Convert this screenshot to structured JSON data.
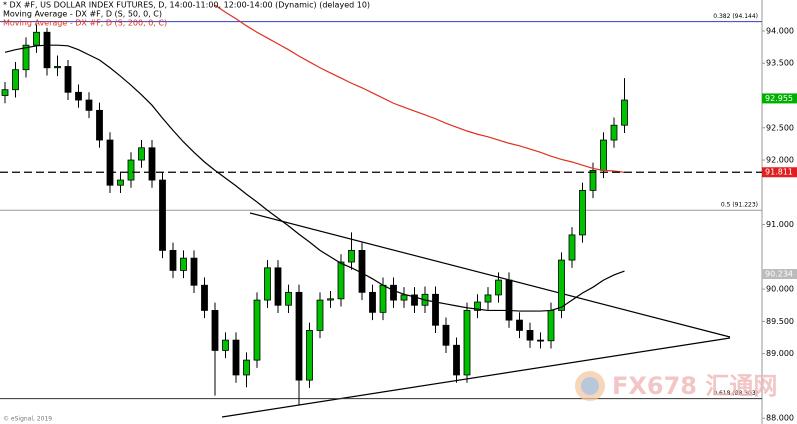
{
  "chart_data": {
    "type": "candlestick",
    "title": "* DX #F, US DOLLAR INDEX FUTURES, D, 14:00-11:00, 12:00-14:00 (Dynamic) (delayed 10)",
    "credit": "© eSignal, 2019",
    "watermark": "FX678 汇通网",
    "ylim": [
      87.91,
      94.48
    ],
    "yticks": [
      {
        "value": 94,
        "label": "94.000"
      },
      {
        "value": 93.5,
        "label": "93.500"
      },
      {
        "value": 92.5,
        "label": "92.500"
      },
      {
        "value": 92,
        "label": "92.000"
      },
      {
        "value": 91,
        "label": "91.000"
      },
      {
        "value": 90,
        "label": "90.000"
      },
      {
        "value": 89.5,
        "label": "89.500"
      },
      {
        "value": 89,
        "label": "89.000"
      },
      {
        "value": 88,
        "label": "88.000"
      }
    ],
    "up_color": "#00c000",
    "down_color": "#000000",
    "open": [
      93.0,
      93.09,
      93.4,
      93.78,
      93.98,
      93.43,
      93.45,
      93.05,
      92.93,
      92.77,
      92.31,
      91.61,
      91.69,
      92.0,
      92.19,
      91.69,
      90.6,
      90.29,
      90.48,
      90.06,
      89.67,
      89.05,
      89.21,
      88.67,
      88.9,
      89.83,
      90.33,
      89.75,
      89.95,
      88.59,
      89.36,
      89.83,
      89.85,
      90.42,
      90.6,
      89.95,
      89.64,
      90.06,
      89.83,
      89.91,
      89.75,
      89.92,
      89.44,
      89.13,
      88.67,
      89.67,
      89.8,
      89.91,
      90.14,
      89.52,
      89.36,
      89.21,
      89.2,
      89.67,
      90.45,
      90.84,
      91.53,
      91.84,
      92.31,
      92.54
    ],
    "high": [
      93.21,
      93.52,
      93.9,
      94.1,
      94.05,
      93.62,
      93.55,
      93.17,
      93.05,
      92.89,
      92.43,
      91.81,
      92.12,
      92.31,
      92.31,
      91.81,
      90.72,
      90.6,
      90.6,
      90.18,
      89.79,
      89.33,
      89.33,
      89.02,
      89.95,
      90.45,
      90.45,
      90.07,
      90.07,
      89.48,
      89.95,
      89.97,
      90.54,
      90.88,
      90.72,
      90.07,
      90.18,
      90.18,
      90.03,
      90.03,
      90.04,
      90.04,
      89.56,
      89.25,
      89.79,
      89.92,
      90.03,
      90.26,
      90.26,
      89.64,
      89.48,
      89.33,
      89.79,
      90.57,
      90.96,
      91.65,
      91.96,
      92.43,
      92.66,
      93.27
    ],
    "low": [
      92.88,
      92.97,
      93.28,
      93.66,
      93.31,
      93.3,
      92.93,
      92.81,
      92.65,
      92.19,
      91.49,
      91.49,
      91.57,
      91.88,
      91.57,
      90.48,
      90.17,
      90.17,
      89.94,
      89.55,
      88.35,
      88.93,
      88.55,
      88.48,
      88.78,
      89.71,
      89.63,
      89.63,
      88.2,
      88.47,
      89.24,
      89.71,
      89.73,
      90.3,
      89.83,
      89.52,
      89.52,
      89.71,
      89.71,
      89.63,
      89.63,
      89.32,
      89.01,
      88.55,
      88.55,
      89.55,
      89.68,
      89.79,
      89.4,
      89.24,
      89.09,
      89.08,
      89.08,
      89.55,
      90.33,
      90.72,
      91.41,
      91.72,
      92.19,
      92.42
    ],
    "close": [
      93.09,
      93.4,
      93.78,
      93.98,
      93.43,
      93.45,
      93.05,
      92.93,
      92.77,
      92.31,
      91.61,
      91.69,
      92.0,
      92.19,
      91.69,
      90.6,
      90.29,
      90.48,
      90.06,
      89.67,
      89.05,
      89.21,
      88.67,
      88.9,
      89.83,
      90.33,
      89.75,
      89.95,
      88.59,
      89.36,
      89.83,
      89.85,
      90.42,
      90.6,
      89.95,
      89.64,
      90.06,
      89.83,
      89.91,
      89.75,
      89.92,
      89.44,
      89.13,
      88.67,
      89.67,
      89.8,
      89.91,
      90.14,
      89.52,
      89.36,
      89.21,
      89.2,
      89.67,
      90.45,
      90.84,
      91.53,
      91.84,
      92.31,
      92.54,
      92.93
    ],
    "series": [
      {
        "name": "Moving Average - DX #F, D (S, 50, 0, C)",
        "color": "#000000",
        "values": [
          93.67,
          93.71,
          93.74,
          93.77,
          93.78,
          93.78,
          93.77,
          93.71,
          93.63,
          93.55,
          93.43,
          93.3,
          93.16,
          93.01,
          92.85,
          92.65,
          92.46,
          92.28,
          92.12,
          91.97,
          91.84,
          91.72,
          91.6,
          91.47,
          91.35,
          91.22,
          91.1,
          90.98,
          90.85,
          90.73,
          90.6,
          90.5,
          90.4,
          90.33,
          90.25,
          90.16,
          90.06,
          89.98,
          89.92,
          89.88,
          89.83,
          89.8,
          89.77,
          89.74,
          89.71,
          89.69,
          89.67,
          89.67,
          89.67,
          89.66,
          89.66,
          89.66,
          89.67,
          89.72,
          89.83,
          89.94,
          90.03,
          90.14,
          90.22,
          90.28
        ]
      },
      {
        "name": "Moving Average - DX #F, D (S, 200, 0, C)",
        "color": "#e03020",
        "values": [
          null,
          null,
          null,
          null,
          null,
          null,
          null,
          null,
          null,
          null,
          null,
          null,
          null,
          null,
          null,
          null,
          null,
          null,
          null,
          null,
          94.4,
          94.29,
          94.19,
          94.08,
          93.98,
          93.89,
          93.8,
          93.71,
          93.61,
          93.52,
          93.43,
          93.35,
          93.27,
          93.19,
          93.12,
          93.04,
          92.96,
          92.88,
          92.82,
          92.76,
          92.7,
          92.64,
          92.57,
          92.51,
          92.45,
          92.4,
          92.36,
          92.31,
          92.26,
          92.22,
          92.17,
          92.12,
          92.06,
          92.01,
          91.97,
          91.92,
          91.87,
          91.84,
          91.83,
          91.81
        ]
      }
    ],
    "fib_levels": [
      {
        "value": 94.144,
        "label": "0.382 (94.144)",
        "color": "#3040c0"
      },
      {
        "value": 91.223,
        "label": "0.5 (91.223)",
        "color": "#999999"
      },
      {
        "value": 88.303,
        "label": "0.618 (88.303)",
        "color": "#333333"
      }
    ],
    "price_markers": [
      {
        "value": 92.955,
        "color": "#00b000"
      },
      {
        "value": 91.811,
        "color": "#e02020"
      },
      {
        "value": 90.234,
        "color": "#bbbbbb"
      }
    ]
  }
}
